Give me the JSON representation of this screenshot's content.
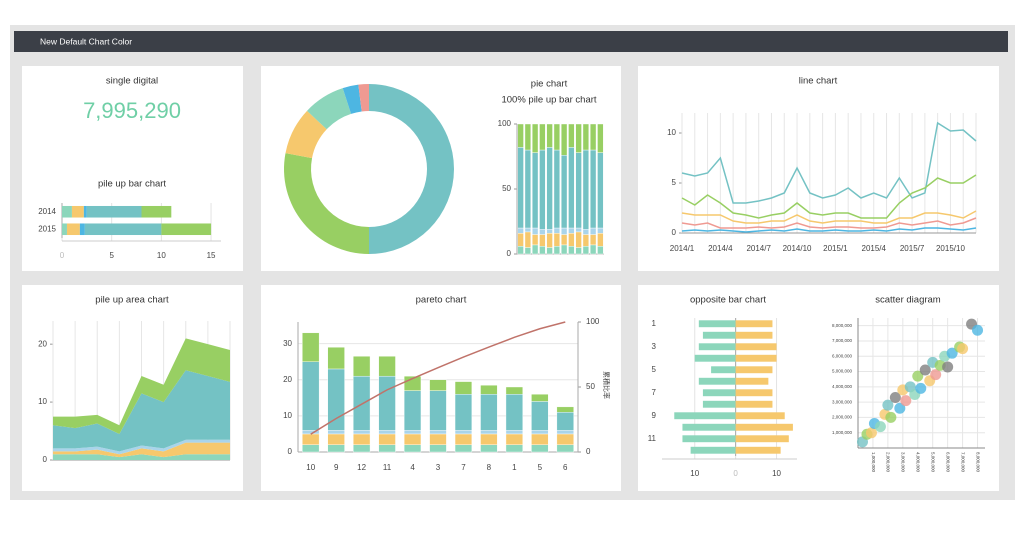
{
  "header": {
    "title": "New Default Chart Color"
  },
  "single_digital": {
    "title": "single digital",
    "value": "7,995,290"
  },
  "chart_data": [
    {
      "type": "bar",
      "orientation": "horizontal",
      "stacked": true,
      "title": "pile up bar chart",
      "categories": [
        "2014",
        "2015"
      ],
      "series": [
        {
          "color": "#8cd6bb",
          "values": [
            1,
            0.5
          ]
        },
        {
          "color": "#f6c86d",
          "values": [
            1.2,
            1.3
          ]
        },
        {
          "color": "#4db6e2",
          "values": [
            0.3,
            0.5
          ]
        },
        {
          "color": "#74c2c4",
          "values": [
            5.5,
            7.7
          ]
        },
        {
          "color": "#98cf63",
          "values": [
            3,
            5
          ]
        }
      ],
      "xlim": [
        0,
        16
      ],
      "xticks": [
        0,
        5,
        10,
        15
      ],
      "grid": "x"
    },
    {
      "type": "pie",
      "donut": true,
      "title": "pie chart",
      "values": [
        50,
        28,
        9,
        8,
        3,
        2
      ],
      "colors": [
        "#74c2c4",
        "#98cf63",
        "#f6c86d",
        "#8cd6bb",
        "#4db6e2",
        "#ef9a92"
      ]
    },
    {
      "type": "bar",
      "stacked": true,
      "title": "100% pile up bar chart",
      "categories": [
        null,
        null,
        null,
        null,
        null,
        null,
        null,
        null,
        null,
        null,
        null,
        null
      ],
      "series": [
        {
          "color": "#8cd6bb",
          "values": [
            6,
            5,
            7,
            6,
            5,
            6,
            7,
            6,
            5,
            6,
            7,
            6
          ]
        },
        {
          "color": "#f6c86d",
          "values": [
            10,
            12,
            8,
            9,
            11,
            10,
            8,
            10,
            12,
            9,
            8,
            10
          ]
        },
        {
          "color": "#a9d4ea",
          "values": [
            4,
            3,
            5,
            4,
            3,
            4,
            5,
            4,
            3,
            4,
            5,
            4
          ]
        },
        {
          "color": "#74c2c4",
          "values": [
            62,
            60,
            58,
            61,
            63,
            60,
            56,
            62,
            58,
            61,
            60,
            58
          ]
        },
        {
          "color": "#98cf63",
          "values": [
            18,
            20,
            22,
            20,
            18,
            20,
            24,
            18,
            22,
            20,
            20,
            22
          ]
        }
      ],
      "ylim": [
        0,
        100
      ],
      "yticks": [
        0,
        50,
        100
      ]
    },
    {
      "type": "line",
      "title": "line chart",
      "categories": [
        "2014/1",
        null,
        null,
        "2014/4",
        null,
        null,
        "2014/7",
        null,
        null,
        "2014/10",
        null,
        null,
        "2015/1",
        null,
        null,
        "2015/4",
        null,
        null,
        "2015/7",
        null,
        null,
        "2015/10",
        null,
        null
      ],
      "series": [
        {
          "color": "#74c2c4",
          "values": [
            6,
            5.7,
            6,
            7.5,
            3,
            3,
            3.2,
            3.5,
            4,
            6.5,
            4,
            3.5,
            3.8,
            4.5,
            3.5,
            4,
            3.5,
            5.5,
            3.5,
            4,
            11,
            10.2,
            10.3,
            9.2
          ]
        },
        {
          "color": "#98cf63",
          "values": [
            3.5,
            2.8,
            3.8,
            3,
            2,
            1.8,
            1.5,
            1.8,
            2,
            3,
            2,
            1.8,
            2,
            2,
            1.5,
            1.5,
            1.5,
            3,
            4,
            4.5,
            5.5,
            5,
            5,
            5.8
          ]
        },
        {
          "color": "#f6c86d",
          "values": [
            2,
            1.8,
            1.8,
            1.8,
            1.2,
            1,
            1,
            1.2,
            1.2,
            1.8,
            1.2,
            1,
            1.2,
            1.2,
            1.2,
            1,
            1,
            1.5,
            1.5,
            2,
            2,
            1.8,
            1.5,
            2.2
          ]
        },
        {
          "color": "#ef9a92",
          "values": [
            1,
            0.8,
            1,
            0.5,
            0.5,
            0.5,
            0.6,
            0.5,
            0.6,
            1,
            0.6,
            0.5,
            0.6,
            0.6,
            0.5,
            0.5,
            0.6,
            1,
            0.8,
            1,
            1.2,
            0.8,
            1,
            1.5
          ]
        },
        {
          "color": "#4db6e2",
          "values": [
            0.2,
            0.3,
            0.2,
            0.3,
            0.2,
            0.1,
            0.2,
            0.3,
            0.2,
            0.4,
            0.2,
            0.2,
            0.3,
            0.2,
            0.2,
            0.3,
            0.2,
            0.4,
            0.3,
            0.5,
            0.5,
            0.4,
            0.3,
            0.5
          ]
        }
      ],
      "ylim": [
        0,
        12
      ],
      "yticks": [
        0,
        5,
        10
      ],
      "grid": "x"
    },
    {
      "type": "area",
      "stacked": true,
      "title": "pile up area chart",
      "categories": [
        null,
        null,
        null,
        null,
        null,
        null,
        null,
        null,
        null
      ],
      "series": [
        {
          "color": "#8cd6bb",
          "values": [
            1,
            1,
            1,
            0.5,
            1,
            0.5,
            1,
            1,
            1
          ]
        },
        {
          "color": "#f6c86d",
          "values": [
            0.5,
            0.5,
            0.8,
            0.5,
            1,
            1,
            2,
            2,
            2
          ]
        },
        {
          "color": "#a9d4ea",
          "values": [
            0.5,
            0.5,
            0.5,
            0.5,
            0.5,
            0.5,
            0.5,
            0.5,
            0.5
          ]
        },
        {
          "color": "#74c2c4",
          "values": [
            4,
            3.5,
            4,
            3,
            9,
            8,
            12,
            11,
            10
          ]
        },
        {
          "color": "#98cf63",
          "values": [
            1.5,
            2,
            1.5,
            1.5,
            3,
            3,
            5.5,
            5.5,
            5.5
          ]
        }
      ],
      "ylim": [
        0,
        24
      ],
      "yticks": [
        0,
        10,
        20
      ],
      "grid": "x"
    },
    {
      "type": "bar",
      "stacked": true,
      "title": "pareto chart",
      "y2label": "累積比率",
      "categories": [
        "10",
        "9",
        "12",
        "11",
        "4",
        "3",
        "7",
        "8",
        "1",
        "5",
        "6"
      ],
      "series": [
        {
          "color": "#8cd6bb",
          "values": [
            2,
            2,
            2,
            2,
            2,
            2,
            2,
            2,
            2,
            2,
            2
          ]
        },
        {
          "color": "#f6c86d",
          "values": [
            3,
            3,
            3,
            3,
            3,
            3,
            3,
            3,
            3,
            3,
            3
          ]
        },
        {
          "color": "#a9d4ea",
          "values": [
            1,
            1,
            1,
            1,
            1,
            1,
            1,
            1,
            1,
            1,
            1
          ]
        },
        {
          "color": "#74c2c4",
          "values": [
            19,
            17,
            15,
            15,
            11,
            11,
            10,
            10,
            10,
            8,
            5
          ]
        },
        {
          "color": "#98cf63",
          "values": [
            8,
            6,
            5.5,
            5.5,
            4,
            3,
            3.5,
            2.5,
            2,
            2,
            1.5
          ]
        },
        {
          "color": "#c0736a",
          "axis": "y2",
          "values": [
            13.7,
            25.8,
            36.8,
            47.8,
            56.5,
            64.9,
            73.0,
            80.7,
            88.2,
            94.8,
            100
          ]
        }
      ],
      "ylim": [
        0,
        36
      ],
      "yticks": [
        0,
        10,
        20,
        30
      ],
      "y2lim": [
        0,
        100
      ],
      "y2ticks": [
        0,
        50,
        100
      ],
      "grid": "y"
    },
    {
      "type": "bar",
      "orientation": "horizontal",
      "stacked": false,
      "title": "opposite bar chart",
      "categories": [
        "1",
        null,
        "3",
        null,
        "5",
        null,
        "7",
        null,
        "9",
        null,
        "11",
        null
      ],
      "series": [
        {
          "color": "#8cd6bb",
          "values": [
            -9,
            -8,
            -9,
            -10,
            -6,
            -9,
            -8,
            -8,
            -15,
            -13,
            -13,
            -11
          ]
        },
        {
          "color": "#f6c86d",
          "values": [
            9,
            9,
            10,
            10,
            9,
            8,
            9,
            9,
            12,
            14,
            13,
            11
          ]
        }
      ],
      "xlim": [
        -18,
        15
      ],
      "xticks": [
        {
          "value": -10,
          "label": "10"
        },
        0,
        10
      ],
      "grid": "x"
    },
    {
      "type": "scatter",
      "title": "scatter diagram",
      "x": [
        300000,
        600000,
        900000,
        1100000,
        1500000,
        1800000,
        2000000,
        2200000,
        2500000,
        2800000,
        3000000,
        3200000,
        3500000,
        3800000,
        4000000,
        4200000,
        4500000,
        4800000,
        5000000,
        5200000,
        5500000,
        5800000,
        6000000,
        6300000,
        6800000,
        7000000,
        7600000,
        8000000
      ],
      "values": [
        400000,
        900000,
        1000000,
        1600000,
        1400000,
        2200000,
        2800000,
        2000000,
        3300000,
        2600000,
        3800000,
        3100000,
        4000000,
        3500000,
        4700000,
        3900000,
        5100000,
        4400000,
        5600000,
        4800000,
        5400000,
        6000000,
        5300000,
        6200000,
        6600000,
        6500000,
        8100000,
        7700000
      ],
      "colors": [
        "#74c2c4",
        "#98cf63",
        "#f6c86d",
        "#4db6e2",
        "#8cd6bb",
        "#f6c86d",
        "#74c2c4",
        "#98cf63",
        "#7f7f7f",
        "#4db6e2",
        "#f6c86d",
        "#ef9a92",
        "#74c2c4",
        "#8cd6bb",
        "#98cf63",
        "#4db6e2",
        "#7f7f7f",
        "#f6c86d",
        "#74c2c4",
        "#ef9a92",
        "#98cf63",
        "#8cd6bb",
        "#7f7f7f",
        "#4db6e2",
        "#98cf63",
        "#f6c86d",
        "#7f7f7f",
        "#4db6e2"
      ],
      "xlim": [
        0,
        8500000
      ],
      "ylim": [
        0,
        8500000
      ],
      "xticks": [
        {
          "value": 1000000,
          "label": "1,000,000"
        },
        {
          "value": 2000000,
          "label": "2,000,000"
        },
        {
          "value": 3000000,
          "label": "3,000,000"
        },
        {
          "value": 4000000,
          "label": "4,000,000"
        },
        {
          "value": 5000000,
          "label": "5,000,000"
        },
        {
          "value": 6000000,
          "label": "6,000,000"
        },
        {
          "value": 7000000,
          "label": "7,000,000"
        },
        {
          "value": 8000000,
          "label": "8,000,000"
        }
      ],
      "yticks": [
        {
          "value": 1000000,
          "label": "1,000,000"
        },
        {
          "value": 2000000,
          "label": "2,000,000"
        },
        {
          "value": 3000000,
          "label": "3,000,000"
        },
        {
          "value": 4000000,
          "label": "4,000,000"
        },
        {
          "value": 5000000,
          "label": "5,000,000"
        },
        {
          "value": 6000000,
          "label": "6,000,000"
        },
        {
          "value": 7000000,
          "label": "7,000,000"
        },
        {
          "value": 8000000,
          "label": "8,000,000"
        }
      ],
      "grid": "both"
    }
  ]
}
